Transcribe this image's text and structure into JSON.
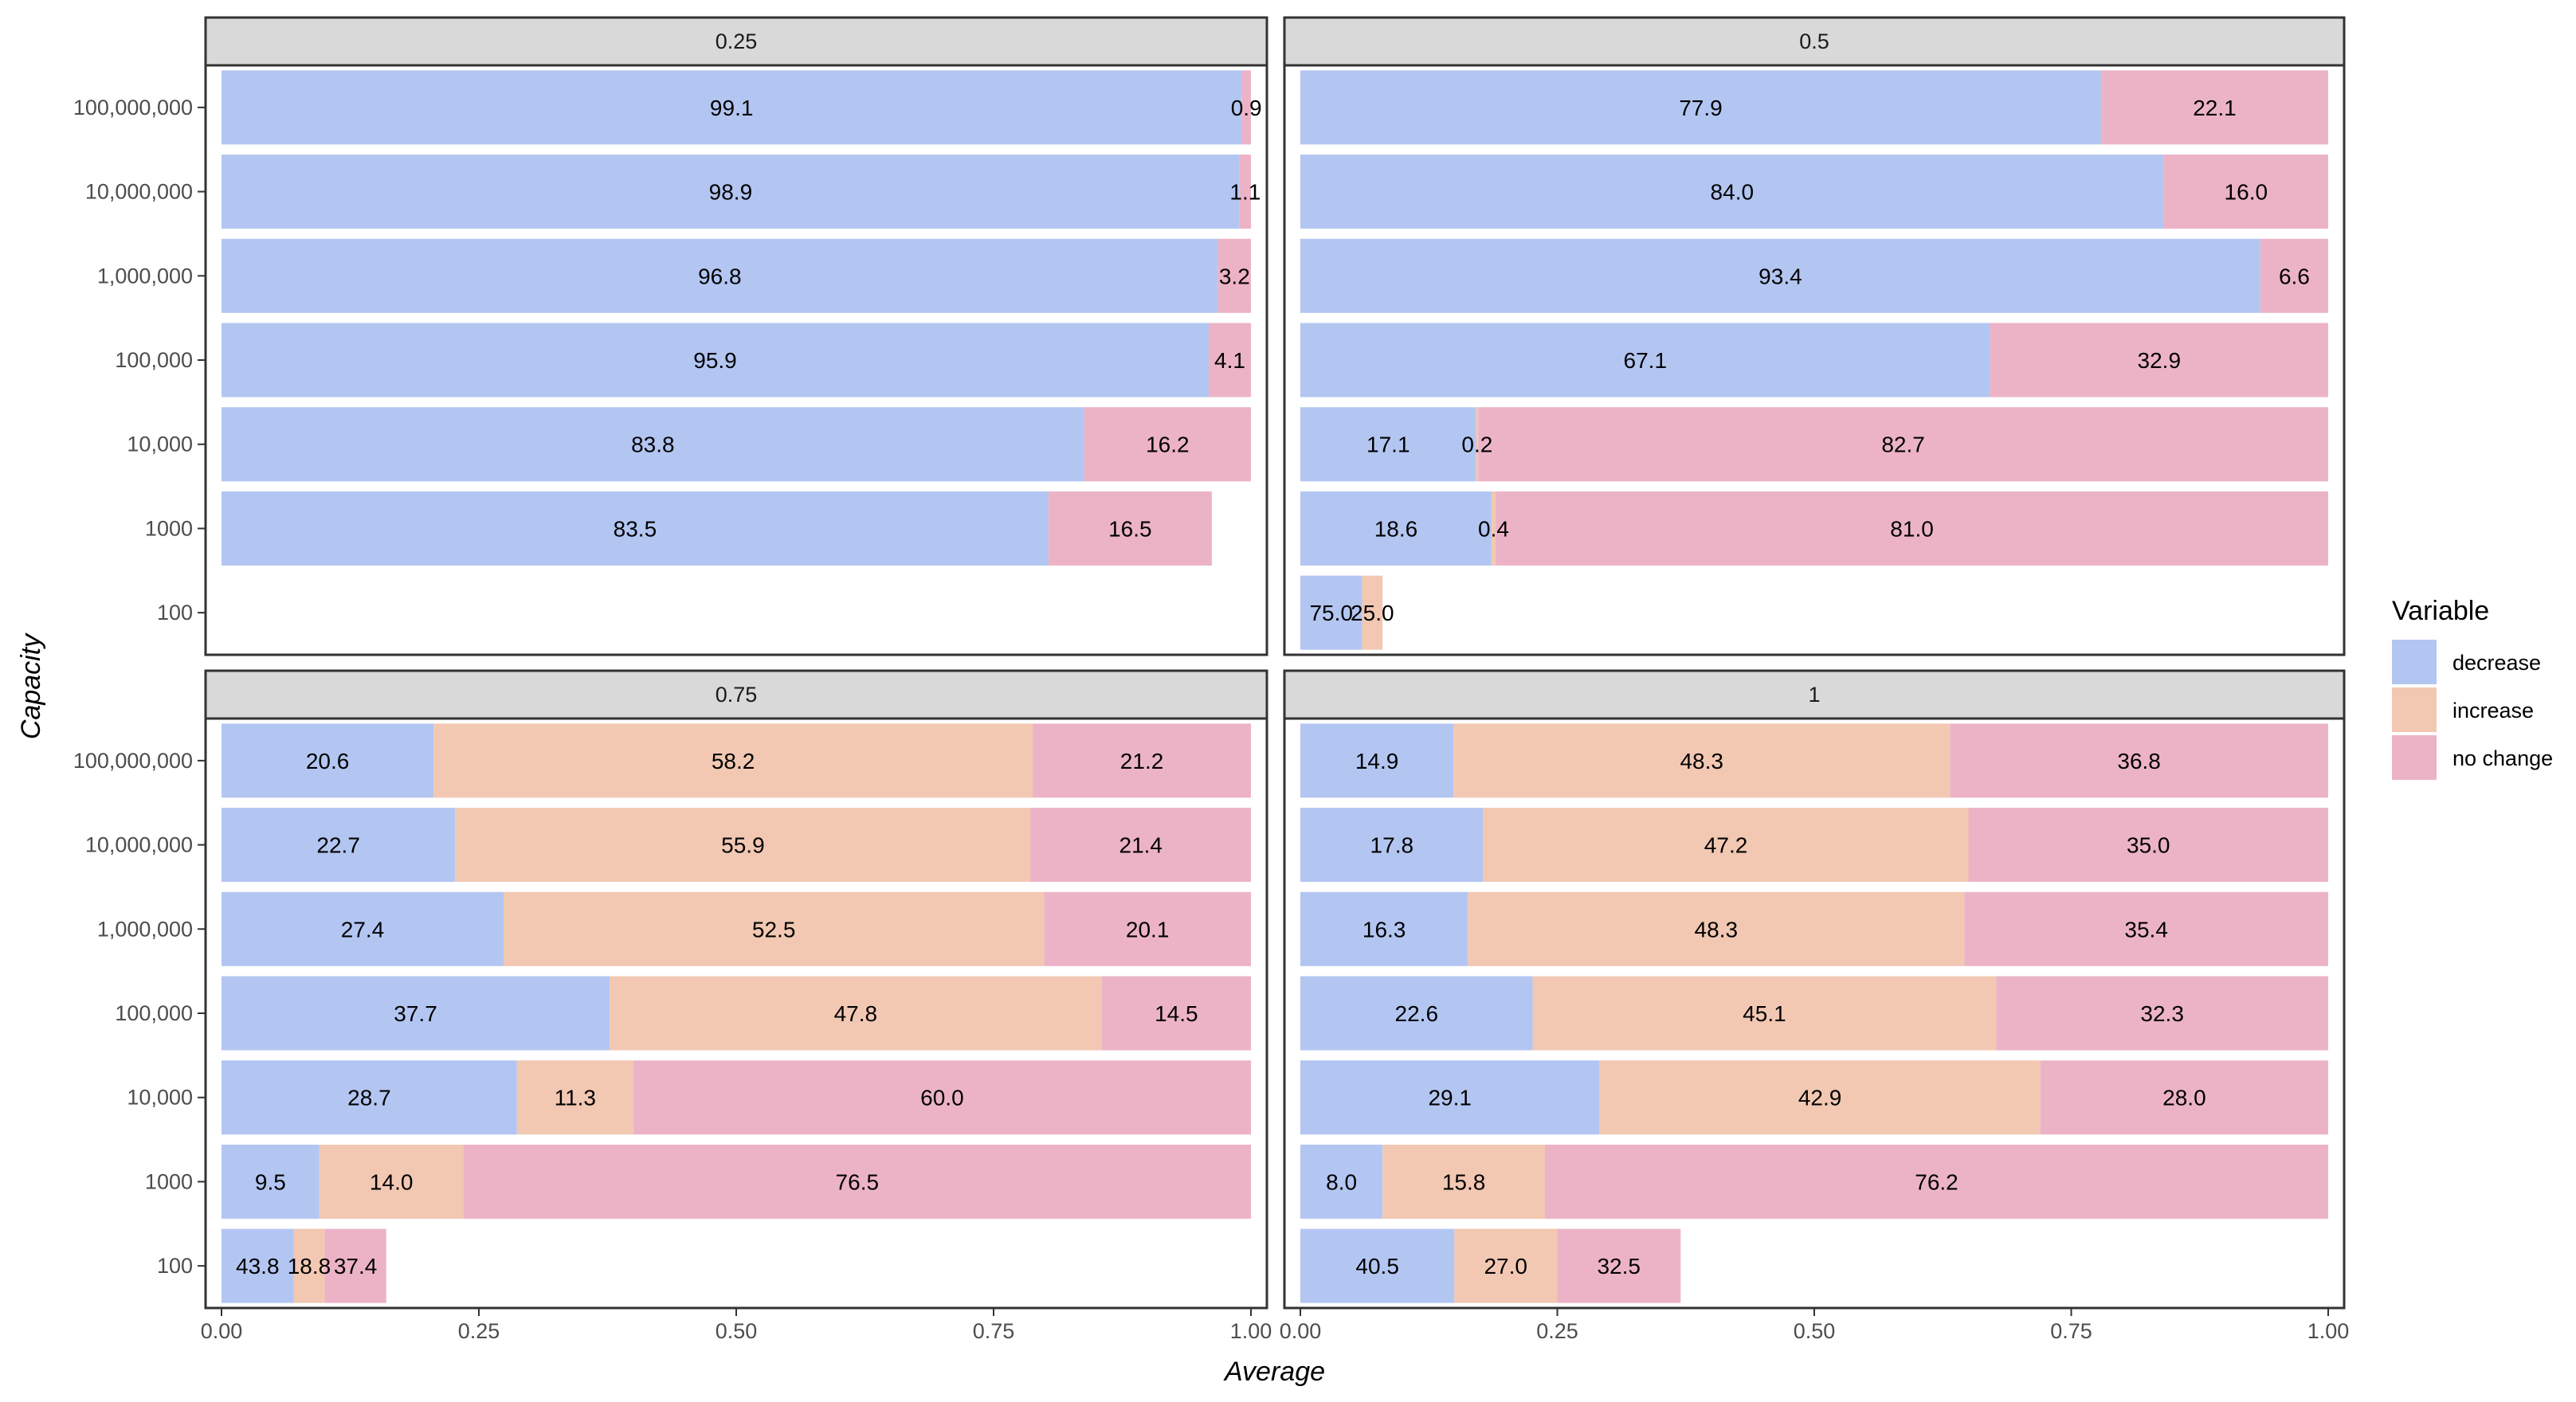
{
  "chart_data": {
    "type": "bar",
    "orientation": "horizontal",
    "stacked": true,
    "xlabel": "Average",
    "ylabel": "Capacity",
    "xlim": [
      0,
      1
    ],
    "x_ticks": [
      "0.00",
      "0.25",
      "0.50",
      "0.75",
      "1.00"
    ],
    "categories": [
      "100,000,000",
      "10,000,000",
      "1,000,000",
      "100,000",
      "10,000",
      "1000",
      "100"
    ],
    "grid": false,
    "legend": {
      "title": "Variable",
      "position": "right",
      "entries": [
        {
          "name": "decrease",
          "color": "#b3c6f2"
        },
        {
          "name": "increase",
          "color": "#f2c8b3"
        },
        {
          "name": "no change",
          "color": "#ecb3c6"
        }
      ]
    },
    "facets": [
      {
        "label": "0.25",
        "rows": [
          {
            "category": "100,000,000",
            "total": 1.0,
            "segments": [
              {
                "series": "decrease",
                "pct": 99.1,
                "label": "99.1"
              },
              {
                "series": "no change",
                "pct": 0.9,
                "label": "0.9"
              }
            ]
          },
          {
            "category": "10,000,000",
            "total": 1.0,
            "segments": [
              {
                "series": "decrease",
                "pct": 98.9,
                "label": "98.9"
              },
              {
                "series": "no change",
                "pct": 1.1,
                "label": "1.1"
              }
            ]
          },
          {
            "category": "1,000,000",
            "total": 1.0,
            "segments": [
              {
                "series": "decrease",
                "pct": 96.8,
                "label": "96.8"
              },
              {
                "series": "no change",
                "pct": 3.2,
                "label": "3.2"
              }
            ]
          },
          {
            "category": "100,000",
            "total": 1.0,
            "segments": [
              {
                "series": "decrease",
                "pct": 95.9,
                "label": "95.9"
              },
              {
                "series": "no change",
                "pct": 4.1,
                "label": "4.1"
              }
            ]
          },
          {
            "category": "10,000",
            "total": 1.0,
            "segments": [
              {
                "series": "decrease",
                "pct": 83.8,
                "label": "83.8"
              },
              {
                "series": "no change",
                "pct": 16.2,
                "label": "16.2"
              }
            ]
          },
          {
            "category": "1000",
            "total": 0.962,
            "segments": [
              {
                "series": "decrease",
                "pct": 83.5,
                "label": "83.5"
              },
              {
                "series": "no change",
                "pct": 16.5,
                "label": "16.5"
              }
            ]
          }
        ]
      },
      {
        "label": "0.5",
        "rows": [
          {
            "category": "100,000,000",
            "total": 1.0,
            "segments": [
              {
                "series": "decrease",
                "pct": 77.9,
                "label": "77.9"
              },
              {
                "series": "no change",
                "pct": 22.1,
                "label": "22.1"
              }
            ]
          },
          {
            "category": "10,000,000",
            "total": 1.0,
            "segments": [
              {
                "series": "decrease",
                "pct": 84.0,
                "label": "84.0"
              },
              {
                "series": "no change",
                "pct": 16.0,
                "label": "16.0"
              }
            ]
          },
          {
            "category": "1,000,000",
            "total": 1.0,
            "segments": [
              {
                "series": "decrease",
                "pct": 93.4,
                "label": "93.4"
              },
              {
                "series": "no change",
                "pct": 6.6,
                "label": "6.6"
              }
            ]
          },
          {
            "category": "100,000",
            "total": 1.0,
            "segments": [
              {
                "series": "decrease",
                "pct": 67.1,
                "label": "67.1"
              },
              {
                "series": "no change",
                "pct": 32.9,
                "label": "32.9"
              }
            ]
          },
          {
            "category": "10,000",
            "total": 1.0,
            "segments": [
              {
                "series": "decrease",
                "pct": 17.1,
                "label": "17.1"
              },
              {
                "series": "increase",
                "pct": 0.2,
                "label": "0.2"
              },
              {
                "series": "no change",
                "pct": 82.7,
                "label": "82.7"
              }
            ]
          },
          {
            "category": "1000",
            "total": 1.0,
            "segments": [
              {
                "series": "decrease",
                "pct": 18.6,
                "label": "18.6"
              },
              {
                "series": "increase",
                "pct": 0.4,
                "label": "0.4"
              },
              {
                "series": "no change",
                "pct": 81.0,
                "label": "81.0"
              }
            ]
          },
          {
            "category": "100",
            "total": 0.08,
            "segments": [
              {
                "series": "decrease",
                "pct": 75.0,
                "label": "75.0"
              },
              {
                "series": "increase",
                "pct": 25.0,
                "label": "25.0"
              }
            ]
          }
        ]
      },
      {
        "label": "0.75",
        "rows": [
          {
            "category": "100,000,000",
            "total": 1.0,
            "segments": [
              {
                "series": "decrease",
                "pct": 20.6,
                "label": "20.6"
              },
              {
                "series": "increase",
                "pct": 58.2,
                "label": "58.2"
              },
              {
                "series": "no change",
                "pct": 21.2,
                "label": "21.2"
              }
            ]
          },
          {
            "category": "10,000,000",
            "total": 1.0,
            "segments": [
              {
                "series": "decrease",
                "pct": 22.7,
                "label": "22.7"
              },
              {
                "series": "increase",
                "pct": 55.9,
                "label": "55.9"
              },
              {
                "series": "no change",
                "pct": 21.4,
                "label": "21.4"
              }
            ]
          },
          {
            "category": "1,000,000",
            "total": 1.0,
            "segments": [
              {
                "series": "decrease",
                "pct": 27.4,
                "label": "27.4"
              },
              {
                "series": "increase",
                "pct": 52.5,
                "label": "52.5"
              },
              {
                "series": "no change",
                "pct": 20.1,
                "label": "20.1"
              }
            ]
          },
          {
            "category": "100,000",
            "total": 1.0,
            "segments": [
              {
                "series": "decrease",
                "pct": 37.7,
                "label": "37.7"
              },
              {
                "series": "increase",
                "pct": 47.8,
                "label": "47.8"
              },
              {
                "series": "no change",
                "pct": 14.5,
                "label": "14.5"
              }
            ]
          },
          {
            "category": "10,000",
            "total": 1.0,
            "segments": [
              {
                "series": "decrease",
                "pct": 28.7,
                "label": "28.7"
              },
              {
                "series": "increase",
                "pct": 11.3,
                "label": "11.3"
              },
              {
                "series": "no change",
                "pct": 60.0,
                "label": "60.0"
              }
            ]
          },
          {
            "category": "1000",
            "total": 1.0,
            "segments": [
              {
                "series": "decrease",
                "pct": 9.5,
                "label": "9.5"
              },
              {
                "series": "increase",
                "pct": 14.0,
                "label": "14.0"
              },
              {
                "series": "no change",
                "pct": 76.5,
                "label": "76.5"
              }
            ]
          },
          {
            "category": "100",
            "total": 0.16,
            "segments": [
              {
                "series": "decrease",
                "pct": 43.8,
                "label": "43.8"
              },
              {
                "series": "increase",
                "pct": 18.8,
                "label": "18.8"
              },
              {
                "series": "no change",
                "pct": 37.4,
                "label": "37.4"
              }
            ]
          }
        ]
      },
      {
        "label": "1",
        "rows": [
          {
            "category": "100,000,000",
            "total": 1.0,
            "segments": [
              {
                "series": "decrease",
                "pct": 14.9,
                "label": "14.9"
              },
              {
                "series": "increase",
                "pct": 48.3,
                "label": "48.3"
              },
              {
                "series": "no change",
                "pct": 36.8,
                "label": "36.8"
              }
            ]
          },
          {
            "category": "10,000,000",
            "total": 1.0,
            "segments": [
              {
                "series": "decrease",
                "pct": 17.8,
                "label": "17.8"
              },
              {
                "series": "increase",
                "pct": 47.2,
                "label": "47.2"
              },
              {
                "series": "no change",
                "pct": 35.0,
                "label": "35.0"
              }
            ]
          },
          {
            "category": "1,000,000",
            "total": 1.0,
            "segments": [
              {
                "series": "decrease",
                "pct": 16.3,
                "label": "16.3"
              },
              {
                "series": "increase",
                "pct": 48.3,
                "label": "48.3"
              },
              {
                "series": "no change",
                "pct": 35.4,
                "label": "35.4"
              }
            ]
          },
          {
            "category": "100,000",
            "total": 1.0,
            "segments": [
              {
                "series": "decrease",
                "pct": 22.6,
                "label": "22.6"
              },
              {
                "series": "increase",
                "pct": 45.1,
                "label": "45.1"
              },
              {
                "series": "no change",
                "pct": 32.3,
                "label": "32.3"
              }
            ]
          },
          {
            "category": "10,000",
            "total": 1.0,
            "segments": [
              {
                "series": "decrease",
                "pct": 29.1,
                "label": "29.1"
              },
              {
                "series": "increase",
                "pct": 42.9,
                "label": "42.9"
              },
              {
                "series": "no change",
                "pct": 28.0,
                "label": "28.0"
              }
            ]
          },
          {
            "category": "1000",
            "total": 1.0,
            "segments": [
              {
                "series": "decrease",
                "pct": 8.0,
                "label": "8.0"
              },
              {
                "series": "increase",
                "pct": 15.8,
                "label": "15.8"
              },
              {
                "series": "no change",
                "pct": 76.2,
                "label": "76.2"
              }
            ]
          },
          {
            "category": "100",
            "total": 0.37,
            "segments": [
              {
                "series": "decrease",
                "pct": 40.5,
                "label": "40.5"
              },
              {
                "series": "increase",
                "pct": 27.0,
                "label": "27.0"
              },
              {
                "series": "no change",
                "pct": 32.5,
                "label": "32.5"
              }
            ]
          }
        ]
      }
    ]
  }
}
